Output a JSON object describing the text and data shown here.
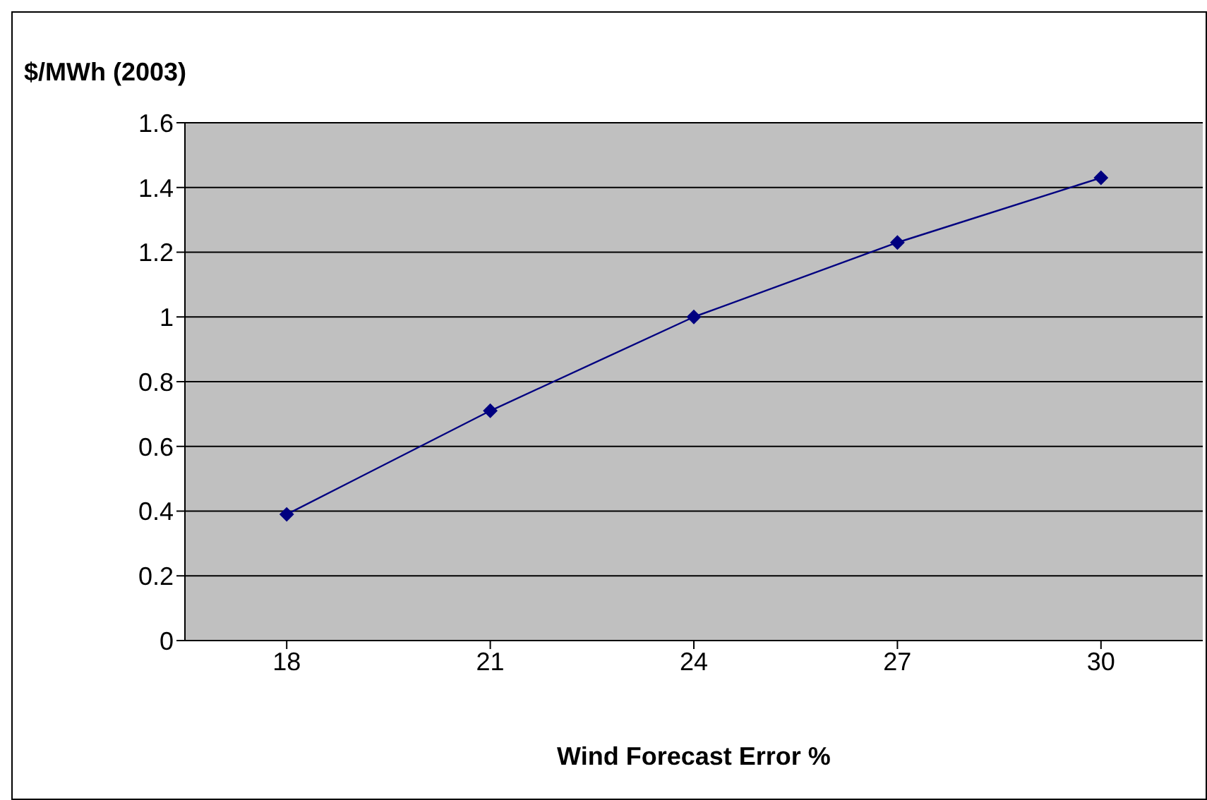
{
  "chart_data": {
    "type": "line",
    "xlabel": "Wind Forecast Error %",
    "ylabel": "$/MWh (2003)",
    "categories": [
      "18",
      "21",
      "24",
      "27",
      "30"
    ],
    "series": [
      {
        "color": "#000080",
        "values": [
          0.39,
          0.71,
          1.0,
          1.23,
          1.43
        ]
      }
    ],
    "ylim": [
      0,
      1.6
    ],
    "yticks": [
      0,
      0.2,
      0.4,
      0.6,
      0.8,
      1,
      1.2,
      1.4,
      1.6
    ],
    "grid": "y",
    "legend": false,
    "marker": "diamond",
    "line_style": "solid"
  }
}
